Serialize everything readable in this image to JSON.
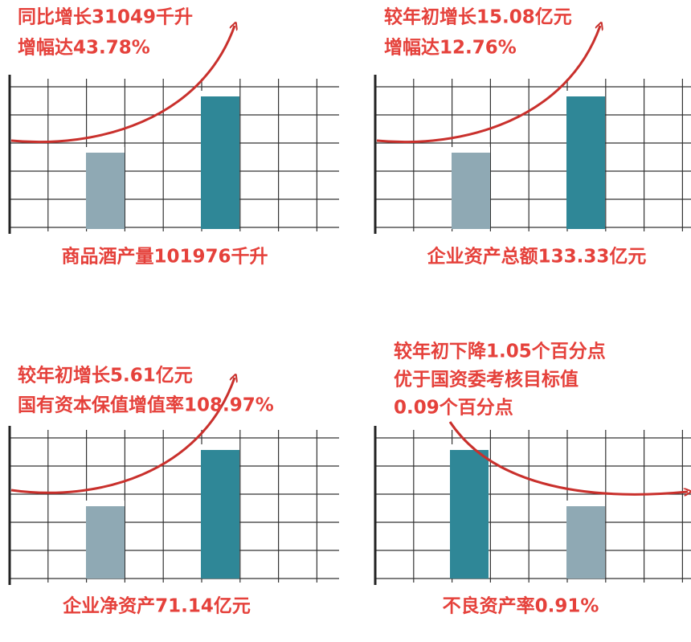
{
  "panels": [
    {
      "notes": [
        "同比增长31049千升",
        "增幅达43.78%"
      ],
      "label": "商品酒产量101976千升"
    },
    {
      "notes": [
        "较年初增长15.08亿元",
        "增幅达12.76%"
      ],
      "label": "企业资产总额133.33亿元"
    },
    {
      "notes": [
        "较年初增长5.61亿元",
        "国有资本保值增值率108.97%"
      ],
      "label": "企业净资产71.14亿元"
    },
    {
      "notes": [
        "较年初下降1.05个百分点",
        "优于国资委考核目标值",
        "0.09个百分点"
      ],
      "label": "不良资产率0.91%"
    }
  ]
}
